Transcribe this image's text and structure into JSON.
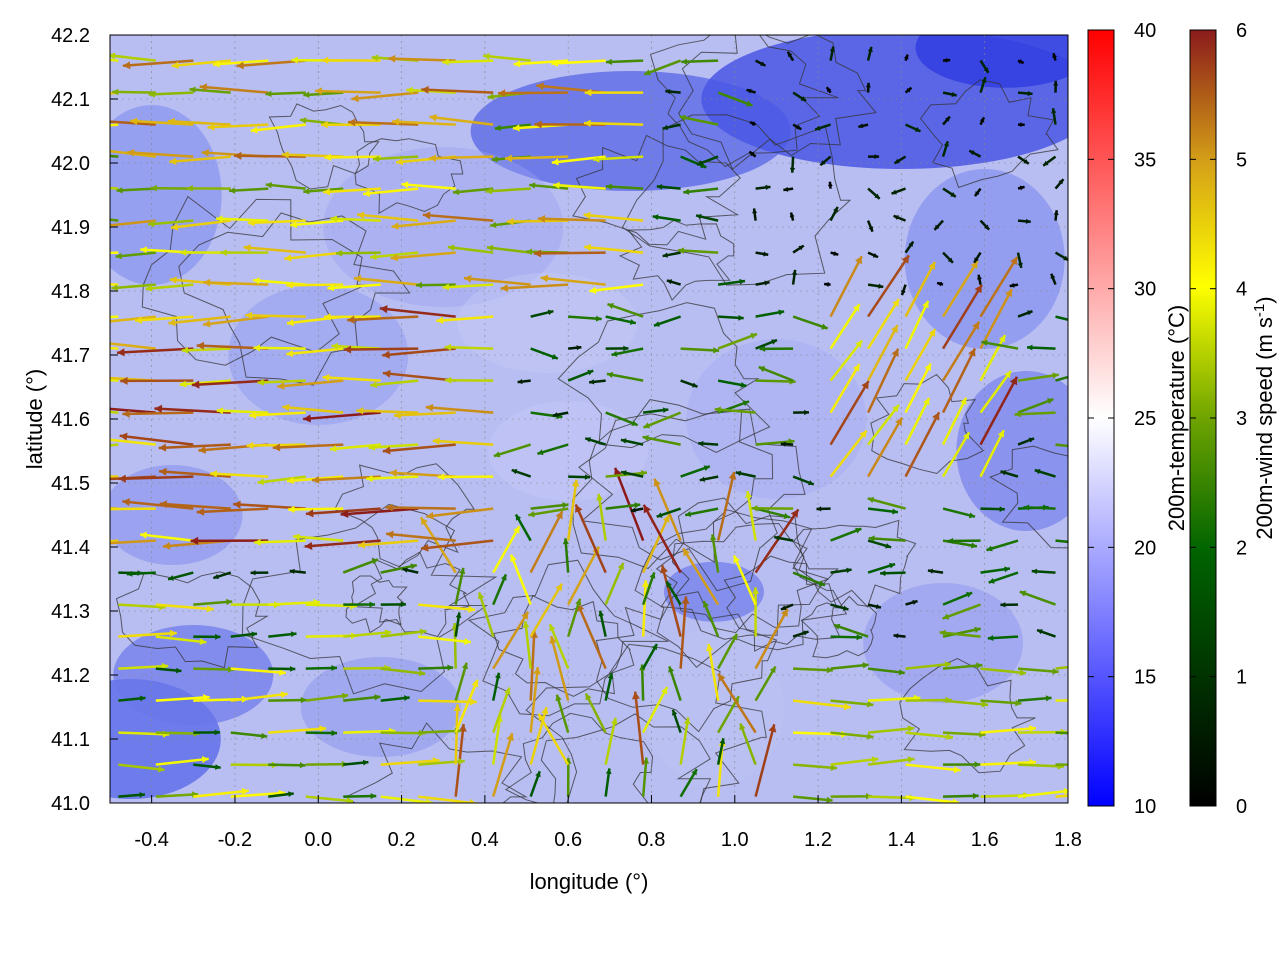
{
  "chart_data": {
    "type": "heatmap",
    "title": "",
    "xlabel": "longitude (°)",
    "ylabel": "latitude (°)",
    "xlim": [
      -0.5,
      1.8
    ],
    "ylim": [
      41.0,
      42.2
    ],
    "x_ticks": [
      "-0.4",
      "-0.2",
      "0.0",
      "0.2",
      "0.4",
      "0.6",
      "0.8",
      "1.0",
      "1.2",
      "1.4",
      "1.6",
      "1.8"
    ],
    "x_tick_values": [
      -0.4,
      -0.2,
      0.0,
      0.2,
      0.4,
      0.6,
      0.8,
      1.0,
      1.2,
      1.4,
      1.6,
      1.8
    ],
    "y_ticks": [
      "41.0",
      "41.1",
      "41.2",
      "41.3",
      "41.4",
      "41.5",
      "41.6",
      "41.7",
      "41.8",
      "41.9",
      "42.0",
      "42.1",
      "42.2"
    ],
    "y_tick_values": [
      41.0,
      41.1,
      41.2,
      41.3,
      41.4,
      41.5,
      41.6,
      41.7,
      41.8,
      41.9,
      42.0,
      42.1,
      42.2
    ],
    "grid": true,
    "temperature_colorbar": {
      "label": "200m-temperature (°C)",
      "range": [
        10,
        40
      ],
      "ticks": [
        "10",
        "15",
        "20",
        "25",
        "30",
        "35",
        "40"
      ],
      "tick_values": [
        10,
        15,
        20,
        25,
        30,
        35,
        40
      ],
      "colors": [
        "#0000ff",
        "#ffffff",
        "#ff0000"
      ]
    },
    "wind_colorbar": {
      "label_main": "200m-wind speed (m s",
      "label_sup": "-1",
      "label_end": ")",
      "range": [
        0,
        6
      ],
      "ticks": [
        "0",
        "1",
        "2",
        "3",
        "4",
        "5",
        "6"
      ],
      "tick_values": [
        0,
        1,
        2,
        3,
        4,
        5,
        6
      ],
      "colors": [
        "#000000",
        "#006400",
        "#6fa400",
        "#ffff00",
        "#d4a017",
        "#c06020",
        "#8b1a1a"
      ]
    },
    "temperature_field": {
      "description_levels_degC": [
        13,
        24
      ],
      "typical_range": [
        14,
        22
      ]
    },
    "wind_regions": [
      {
        "region": "north band",
        "lon": [
          -0.5,
          0.8
        ],
        "lat": [
          41.8,
          42.2
        ],
        "direction": "westward",
        "speed": [
          2.5,
          5.5
        ]
      },
      {
        "region": "central band",
        "lon": [
          -0.5,
          0.5
        ],
        "lat": [
          41.4,
          41.8
        ],
        "direction": "westward",
        "speed": [
          3.5,
          6.0
        ]
      },
      {
        "region": "south-west",
        "lon": [
          -0.5,
          0.3
        ],
        "lat": [
          41.0,
          41.35
        ],
        "direction": "eastward",
        "speed": [
          1.5,
          4.5
        ]
      },
      {
        "region": "south-east",
        "lon": [
          1.1,
          1.8
        ],
        "lat": [
          41.0,
          41.25
        ],
        "direction": "eastward",
        "speed": [
          2.0,
          4.5
        ]
      },
      {
        "region": "north-east",
        "lon": [
          1.2,
          1.6
        ],
        "lat": [
          41.5,
          41.8
        ],
        "direction": "north-eastward",
        "speed": [
          3.5,
          6.0
        ]
      },
      {
        "region": "calm north-east",
        "lon": [
          1.0,
          1.8
        ],
        "lat": [
          41.8,
          42.2
        ],
        "direction": "weak",
        "speed": [
          0,
          1
        ]
      }
    ]
  }
}
